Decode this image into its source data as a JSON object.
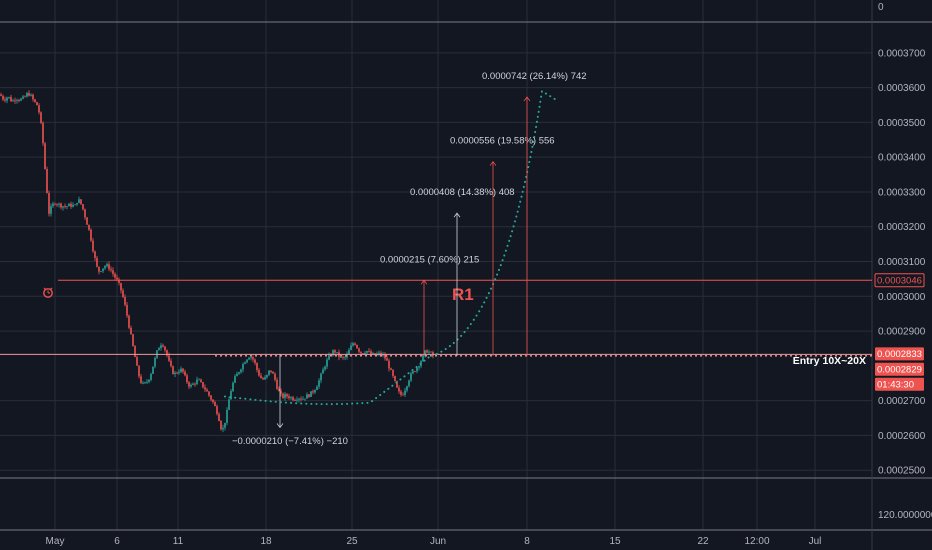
{
  "colors": {
    "background": "#131722",
    "grid": "#2a2e39",
    "up": "#26a69a",
    "down": "#ef5350",
    "text": "#b2b5be",
    "resistance": "#ef5350",
    "entry": "#ef9a9a",
    "projection": "#26a69a",
    "measure": "#d1d4dc"
  },
  "chart_data": {
    "type": "candlestick",
    "ylim": [
      0.00024,
      0.000378
    ],
    "y_ticks": [
      "0.0003700",
      "0.0003600",
      "0.0003500",
      "0.0003400",
      "0.0003300",
      "0.0003200",
      "0.0003100",
      "0.0003000",
      "0.0002900",
      "0.0002700",
      "0.0002600",
      "0.0002500"
    ],
    "top_pane_label": "0",
    "bottom_pane_label": "120.0000000",
    "x_ticks": [
      "May",
      "6",
      "11",
      "18",
      "25",
      "Jun",
      "8",
      "15",
      "22",
      "12:00",
      "Jul"
    ],
    "price_path": [
      [
        0,
        0.000358
      ],
      [
        4,
        0.0003565
      ],
      [
        8,
        0.0003575
      ],
      [
        12,
        0.000356
      ],
      [
        16,
        0.000357
      ],
      [
        20,
        0.0003565
      ],
      [
        24,
        0.000357
      ],
      [
        28,
        0.0003585
      ],
      [
        31,
        0.0003575
      ],
      [
        34,
        0.000356
      ],
      [
        37,
        0.000355
      ],
      [
        40,
        0.000352
      ],
      [
        43,
        0.000344
      ],
      [
        46,
        0.000333
      ],
      [
        49,
        0.000324
      ],
      [
        52,
        0.000326
      ],
      [
        55,
        0.000327
      ],
      [
        60,
        0.0003262
      ],
      [
        65,
        0.0003258
      ],
      [
        70,
        0.0003262
      ],
      [
        75,
        0.000326
      ],
      [
        78,
        0.000328
      ],
      [
        82,
        0.000326
      ],
      [
        86,
        0.000322
      ],
      [
        90,
        0.000318
      ],
      [
        94,
        0.000312
      ],
      [
        98,
        0.000307
      ],
      [
        102,
        0.000308
      ],
      [
        106,
        0.000309
      ],
      [
        110,
        0.000308
      ],
      [
        114,
        0.000306
      ],
      [
        118,
        0.000304
      ],
      [
        122,
        0.000301
      ],
      [
        126,
        0.000296
      ],
      [
        130,
        0.00029
      ],
      [
        134,
        0.000284
      ],
      [
        138,
        0.000278
      ],
      [
        142,
        0.0002745
      ],
      [
        146,
        0.000275
      ],
      [
        150,
        0.000277
      ],
      [
        154,
        0.000281
      ],
      [
        158,
        0.000285
      ],
      [
        162,
        0.0002868
      ],
      [
        166,
        0.000284
      ],
      [
        170,
        0.00028
      ],
      [
        174,
        0.0002775
      ],
      [
        178,
        0.0002785
      ],
      [
        182,
        0.000279
      ],
      [
        186,
        0.000276
      ],
      [
        190,
        0.000274
      ],
      [
        194,
        0.000275
      ],
      [
        198,
        0.000276
      ],
      [
        202,
        0.0002745
      ],
      [
        206,
        0.000273
      ],
      [
        210,
        0.000271
      ],
      [
        214,
        0.000269
      ],
      [
        218,
        0.000266
      ],
      [
        222,
        0.000261
      ],
      [
        226,
        0.000265
      ],
      [
        230,
        0.000272
      ],
      [
        234,
        0.000276
      ],
      [
        238,
        0.000278
      ],
      [
        242,
        0.00028
      ],
      [
        246,
        0.000282
      ],
      [
        250,
        0.000283
      ],
      [
        254,
        0.0002815
      ],
      [
        258,
        0.000278
      ],
      [
        262,
        0.000276
      ],
      [
        266,
        0.0002765
      ],
      [
        270,
        0.000279
      ],
      [
        274,
        0.000277
      ],
      [
        278,
        0.000273
      ],
      [
        282,
        0.000271
      ],
      [
        286,
        0.0002715
      ],
      [
        290,
        0.000271
      ],
      [
        294,
        0.0002705
      ],
      [
        298,
        0.000271
      ],
      [
        302,
        0.0002705
      ],
      [
        306,
        0.0002712
      ],
      [
        310,
        0.0002718
      ],
      [
        314,
        0.000273
      ],
      [
        318,
        0.000275
      ],
      [
        322,
        0.000278
      ],
      [
        326,
        0.000281
      ],
      [
        330,
        0.000283
      ],
      [
        334,
        0.0002845
      ],
      [
        338,
        0.000283
      ],
      [
        342,
        0.000282
      ],
      [
        346,
        0.0002825
      ],
      [
        350,
        0.000285
      ],
      [
        354,
        0.000287
      ],
      [
        358,
        0.0002848
      ],
      [
        362,
        0.0002835
      ],
      [
        366,
        0.0002845
      ],
      [
        370,
        0.0002835
      ],
      [
        374,
        0.000283
      ],
      [
        378,
        0.0002835
      ],
      [
        382,
        0.0002832
      ],
      [
        386,
        0.000282
      ],
      [
        390,
        0.000279
      ],
      [
        394,
        0.000276
      ],
      [
        398,
        0.0002725
      ],
      [
        402,
        0.0002715
      ],
      [
        406,
        0.000274
      ],
      [
        410,
        0.000277
      ],
      [
        414,
        0.0002785
      ],
      [
        418,
        0.00028
      ],
      [
        422,
        0.000282
      ],
      [
        426,
        0.0002845
      ],
      [
        430,
        0.0002838
      ],
      [
        433,
        0.0002829
      ]
    ],
    "annotations": {
      "resistance_price": "0.0003046",
      "resistance_label": "R1",
      "entry_prices": [
        "0.0002833",
        "0.0002829"
      ],
      "entry_label": "Entry 10X~20X",
      "countdown": "01:43:30",
      "measure_down": "−0.0000210 (−7.41%) −210",
      "targets": [
        {
          "label": "0.0000215 (7.60%) 215",
          "price": 0.0003046
        },
        {
          "label": "0.0000408 (14.38%) 408",
          "price": 0.0003239
        },
        {
          "label": "0.0000556 (19.58%) 556",
          "price": 0.0003387
        },
        {
          "label": "0.0000742 (26.14%) 742",
          "price": 0.0003573
        }
      ]
    }
  }
}
